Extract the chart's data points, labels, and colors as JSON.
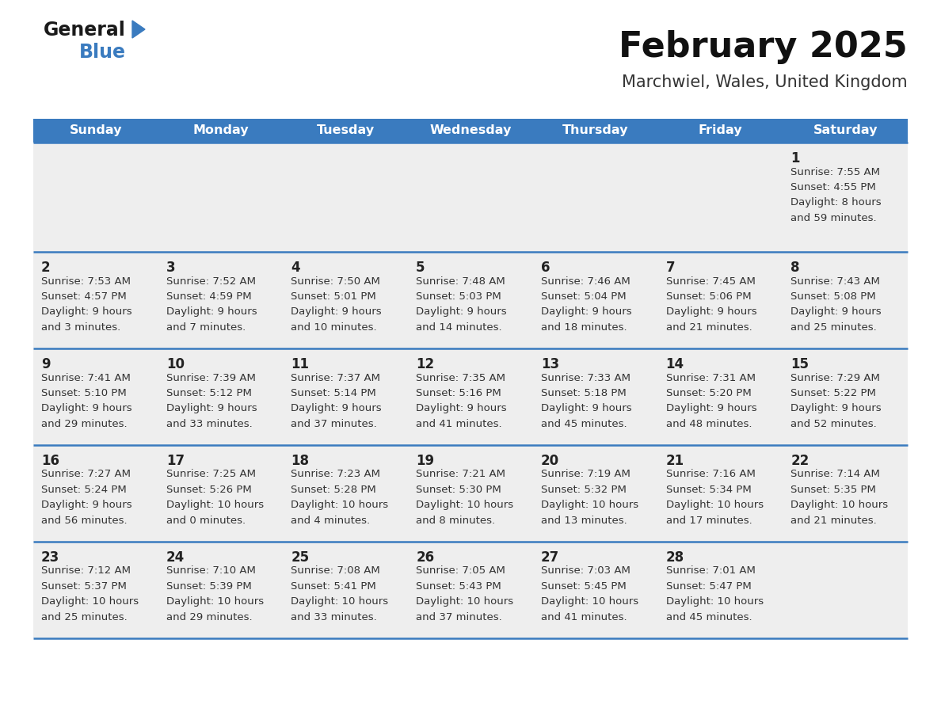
{
  "title": "February 2025",
  "subtitle": "Marchwiel, Wales, United Kingdom",
  "header_bg": "#3a7bbf",
  "header_text_color": "#ffffff",
  "cell_bg": "#eeeeee",
  "day_number_color": "#222222",
  "cell_text_color": "#333333",
  "border_color": "#3a7bbf",
  "days_of_week": [
    "Sunday",
    "Monday",
    "Tuesday",
    "Wednesday",
    "Thursday",
    "Friday",
    "Saturday"
  ],
  "calendar_data": [
    [
      null,
      null,
      null,
      null,
      null,
      null,
      {
        "day": 1,
        "sunrise": "7:55 AM",
        "sunset": "4:55 PM",
        "daylight": "8 hours",
        "daylight2": "and 59 minutes."
      }
    ],
    [
      {
        "day": 2,
        "sunrise": "7:53 AM",
        "sunset": "4:57 PM",
        "daylight": "9 hours",
        "daylight2": "and 3 minutes."
      },
      {
        "day": 3,
        "sunrise": "7:52 AM",
        "sunset": "4:59 PM",
        "daylight": "9 hours",
        "daylight2": "and 7 minutes."
      },
      {
        "day": 4,
        "sunrise": "7:50 AM",
        "sunset": "5:01 PM",
        "daylight": "9 hours",
        "daylight2": "and 10 minutes."
      },
      {
        "day": 5,
        "sunrise": "7:48 AM",
        "sunset": "5:03 PM",
        "daylight": "9 hours",
        "daylight2": "and 14 minutes."
      },
      {
        "day": 6,
        "sunrise": "7:46 AM",
        "sunset": "5:04 PM",
        "daylight": "9 hours",
        "daylight2": "and 18 minutes."
      },
      {
        "day": 7,
        "sunrise": "7:45 AM",
        "sunset": "5:06 PM",
        "daylight": "9 hours",
        "daylight2": "and 21 minutes."
      },
      {
        "day": 8,
        "sunrise": "7:43 AM",
        "sunset": "5:08 PM",
        "daylight": "9 hours",
        "daylight2": "and 25 minutes."
      }
    ],
    [
      {
        "day": 9,
        "sunrise": "7:41 AM",
        "sunset": "5:10 PM",
        "daylight": "9 hours",
        "daylight2": "and 29 minutes."
      },
      {
        "day": 10,
        "sunrise": "7:39 AM",
        "sunset": "5:12 PM",
        "daylight": "9 hours",
        "daylight2": "and 33 minutes."
      },
      {
        "day": 11,
        "sunrise": "7:37 AM",
        "sunset": "5:14 PM",
        "daylight": "9 hours",
        "daylight2": "and 37 minutes."
      },
      {
        "day": 12,
        "sunrise": "7:35 AM",
        "sunset": "5:16 PM",
        "daylight": "9 hours",
        "daylight2": "and 41 minutes."
      },
      {
        "day": 13,
        "sunrise": "7:33 AM",
        "sunset": "5:18 PM",
        "daylight": "9 hours",
        "daylight2": "and 45 minutes."
      },
      {
        "day": 14,
        "sunrise": "7:31 AM",
        "sunset": "5:20 PM",
        "daylight": "9 hours",
        "daylight2": "and 48 minutes."
      },
      {
        "day": 15,
        "sunrise": "7:29 AM",
        "sunset": "5:22 PM",
        "daylight": "9 hours",
        "daylight2": "and 52 minutes."
      }
    ],
    [
      {
        "day": 16,
        "sunrise": "7:27 AM",
        "sunset": "5:24 PM",
        "daylight": "9 hours",
        "daylight2": "and 56 minutes."
      },
      {
        "day": 17,
        "sunrise": "7:25 AM",
        "sunset": "5:26 PM",
        "daylight": "10 hours",
        "daylight2": "and 0 minutes."
      },
      {
        "day": 18,
        "sunrise": "7:23 AM",
        "sunset": "5:28 PM",
        "daylight": "10 hours",
        "daylight2": "and 4 minutes."
      },
      {
        "day": 19,
        "sunrise": "7:21 AM",
        "sunset": "5:30 PM",
        "daylight": "10 hours",
        "daylight2": "and 8 minutes."
      },
      {
        "day": 20,
        "sunrise": "7:19 AM",
        "sunset": "5:32 PM",
        "daylight": "10 hours",
        "daylight2": "and 13 minutes."
      },
      {
        "day": 21,
        "sunrise": "7:16 AM",
        "sunset": "5:34 PM",
        "daylight": "10 hours",
        "daylight2": "and 17 minutes."
      },
      {
        "day": 22,
        "sunrise": "7:14 AM",
        "sunset": "5:35 PM",
        "daylight": "10 hours",
        "daylight2": "and 21 minutes."
      }
    ],
    [
      {
        "day": 23,
        "sunrise": "7:12 AM",
        "sunset": "5:37 PM",
        "daylight": "10 hours",
        "daylight2": "and 25 minutes."
      },
      {
        "day": 24,
        "sunrise": "7:10 AM",
        "sunset": "5:39 PM",
        "daylight": "10 hours",
        "daylight2": "and 29 minutes."
      },
      {
        "day": 25,
        "sunrise": "7:08 AM",
        "sunset": "5:41 PM",
        "daylight": "10 hours",
        "daylight2": "and 33 minutes."
      },
      {
        "day": 26,
        "sunrise": "7:05 AM",
        "sunset": "5:43 PM",
        "daylight": "10 hours",
        "daylight2": "and 37 minutes."
      },
      {
        "day": 27,
        "sunrise": "7:03 AM",
        "sunset": "5:45 PM",
        "daylight": "10 hours",
        "daylight2": "and 41 minutes."
      },
      {
        "day": 28,
        "sunrise": "7:01 AM",
        "sunset": "5:47 PM",
        "daylight": "10 hours",
        "daylight2": "and 45 minutes."
      },
      null
    ]
  ],
  "logo_text_general": "General",
  "logo_text_blue": "Blue",
  "logo_triangle_color": "#3a7bbf",
  "title_fontsize": 32,
  "subtitle_fontsize": 15,
  "header_fontsize": 11.5,
  "day_num_fontsize": 12,
  "cell_text_fontsize": 9.5
}
